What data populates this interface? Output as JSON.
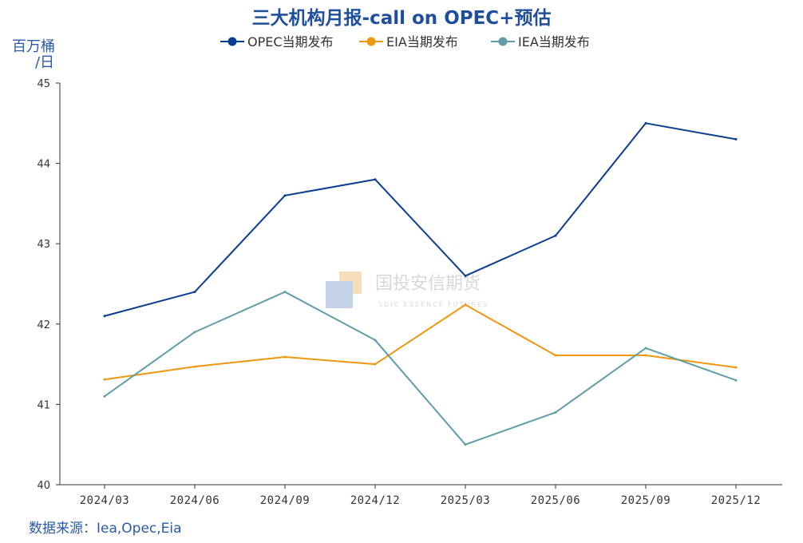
{
  "chart_data": {
    "type": "line",
    "title": "三大机构月报-call on OPEC+预估",
    "ylabel_line1": "百万桶",
    "ylabel_line2": "/日",
    "categories": [
      "2024/03",
      "2024/06",
      "2024/09",
      "2024/12",
      "2025/03",
      "2025/06",
      "2025/09",
      "2025/12"
    ],
    "ylim": [
      40,
      45
    ],
    "yticks": [
      40,
      41,
      42,
      43,
      44,
      45
    ],
    "grid": false,
    "legend_position": "top-center",
    "series": [
      {
        "name": "OPEC当期发布",
        "color": "#0b3d91",
        "values": [
          42.1,
          42.4,
          43.6,
          43.8,
          42.6,
          43.1,
          44.5,
          44.3
        ]
      },
      {
        "name": "EIA当期发布",
        "color": "#f0960f",
        "values": [
          41.31,
          41.47,
          41.59,
          41.5,
          42.24,
          41.61,
          41.61,
          41.46
        ]
      },
      {
        "name": "IEA当期发布",
        "color": "#5f9ea8",
        "values": [
          41.1,
          41.9,
          42.4,
          41.8,
          40.5,
          40.9,
          41.7,
          41.3
        ]
      }
    ],
    "source": "数据来源：Iea,Opec,Eia"
  },
  "watermark": {
    "cn": "国投安信期货",
    "en": "SDIC ESSENCE FUTURES"
  }
}
